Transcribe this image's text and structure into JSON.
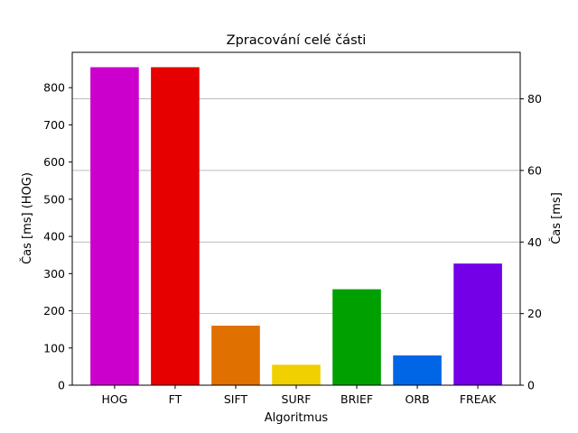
{
  "chart_data": {
    "type": "bar",
    "title": "Zpracování celé části",
    "xlabel": "Algoritmus",
    "ylabel": "Čas [ms] (HOG)",
    "ylabel_right": "Čas [ms]",
    "categories": [
      "HOG",
      "FT",
      "SIFT",
      "SURF",
      "BRIEF",
      "ORB",
      "FREAK"
    ],
    "values": [
      855,
      855,
      160,
      55,
      258,
      80,
      327
    ],
    "colors": [
      "#cc00cc",
      "#e60000",
      "#e07000",
      "#f0d000",
      "#00a000",
      "#0066e6",
      "#7300e6"
    ],
    "ylim": [
      0,
      895
    ],
    "ylim_right": [
      0,
      93
    ],
    "yticks": [
      0,
      100,
      200,
      300,
      400,
      500,
      600,
      700,
      800
    ],
    "yticks_right": [
      0,
      20,
      40,
      60,
      80
    ],
    "grid": "horizontal lines at right-axis ticks"
  }
}
